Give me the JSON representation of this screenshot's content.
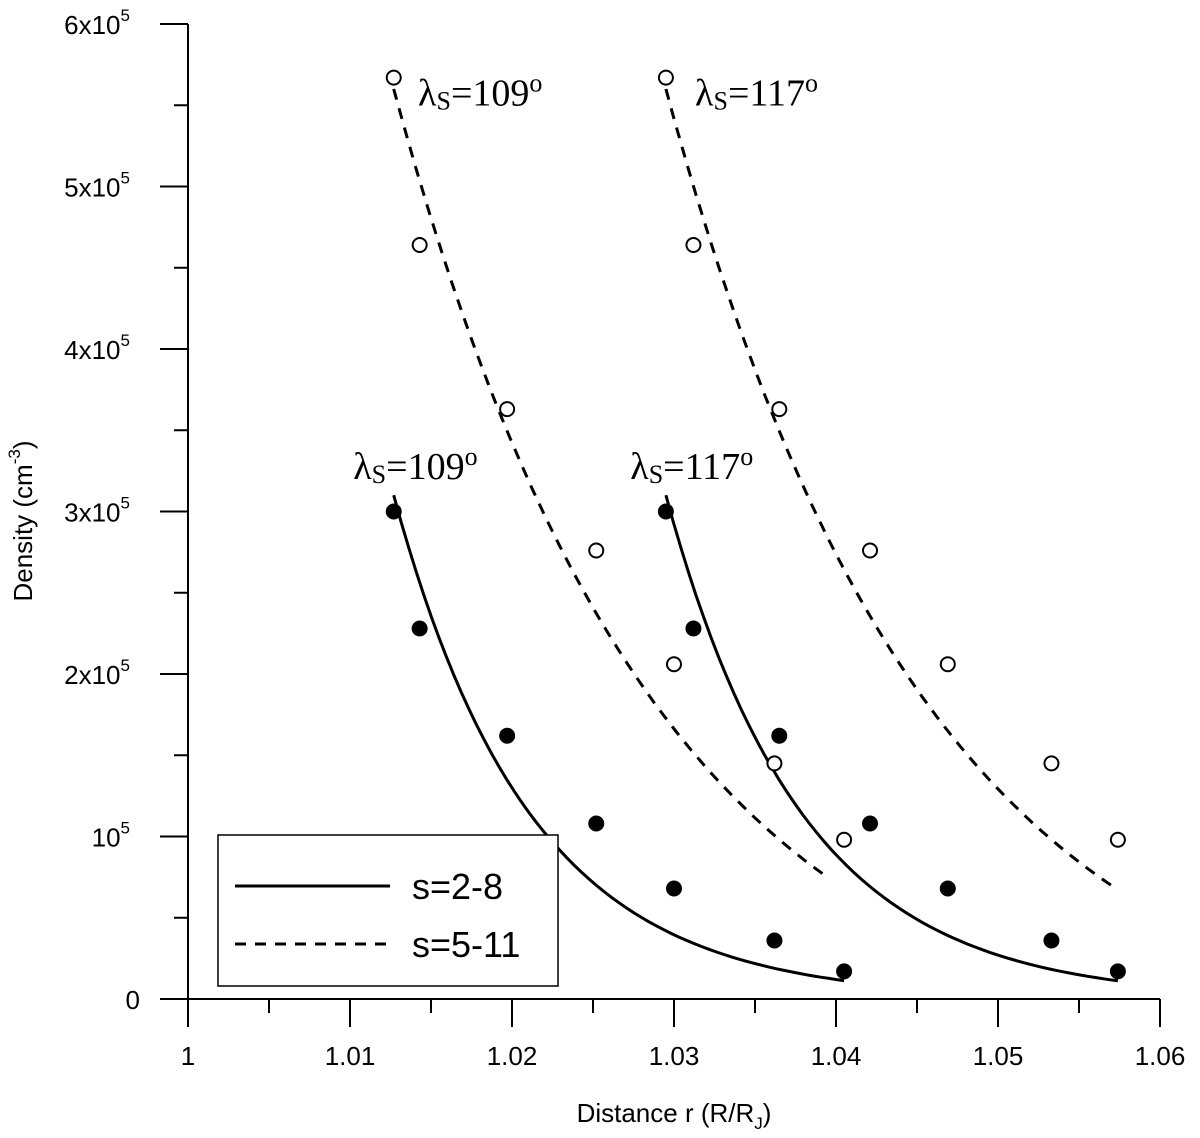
{
  "chart_data": {
    "type": "scatter",
    "xlabel": "Distance r (R/R",
    "xlabel_sub": "J",
    "xlabel_close": ")",
    "ylabel": "Density  (cm",
    "ylabel_sup": "-3",
    "ylabel_close": ")",
    "xlim": [
      1.0,
      1.06
    ],
    "ylim": [
      0,
      600000
    ],
    "x_ticks": [
      1.0,
      1.01,
      1.02,
      1.03,
      1.04,
      1.05,
      1.06
    ],
    "x_tick_labels": [
      "1",
      "1.01",
      "1.02",
      "1.03",
      "1.04",
      "1.05",
      "1.06"
    ],
    "y_ticks": [
      0,
      100000,
      200000,
      300000,
      400000,
      500000,
      600000
    ],
    "y_tick_labels": [
      {
        "base": "0",
        "exp": ""
      },
      {
        "base": "10",
        "exp": "5"
      },
      {
        "base": "2x10",
        "exp": "5"
      },
      {
        "base": "3x10",
        "exp": "5"
      },
      {
        "base": "4x10",
        "exp": "5"
      },
      {
        "base": "5x10",
        "exp": "5"
      },
      {
        "base": "6x10",
        "exp": "5"
      }
    ],
    "grid": false,
    "legend_position": "bottom-left",
    "legend": [
      {
        "label": "s=2-8",
        "style": "solid"
      },
      {
        "label": "s=5-11",
        "style": "dashed"
      }
    ],
    "series": [
      {
        "group": "s=2-8",
        "style": "solid",
        "marker": "filled",
        "points": [
          {
            "x": 1.0127,
            "y": 300000
          },
          {
            "x": 1.0143,
            "y": 228000
          },
          {
            "x": 1.0197,
            "y": 162000
          },
          {
            "x": 1.0252,
            "y": 108000
          },
          {
            "x": 1.03,
            "y": 68000
          },
          {
            "x": 1.0362,
            "y": 36000
          },
          {
            "x": 1.0405,
            "y": 17000
          }
        ],
        "fit": {
          "x_start": 1.0127,
          "x_end": 1.0405,
          "y_start": 310000,
          "y_end": 20000,
          "x_ref": 1.0127,
          "y_ref": 310000,
          "decay": 0.0084
        }
      },
      {
        "group": "s=2-8",
        "style": "solid",
        "marker": "filled",
        "points": [
          {
            "x": 1.0295,
            "y": 300000
          },
          {
            "x": 1.0312,
            "y": 228000
          },
          {
            "x": 1.0365,
            "y": 162000
          },
          {
            "x": 1.0421,
            "y": 108000
          },
          {
            "x": 1.0469,
            "y": 68000
          },
          {
            "x": 1.0533,
            "y": 36000
          },
          {
            "x": 1.0574,
            "y": 17000
          }
        ],
        "fit": {
          "x_start": 1.0295,
          "x_end": 1.0574,
          "x_ref": 1.0295,
          "y_ref": 310000,
          "decay": 0.0084
        }
      },
      {
        "group": "s=5-11",
        "style": "dashed",
        "marker": "open",
        "points": [
          {
            "x": 1.0127,
            "y": 567000
          },
          {
            "x": 1.0143,
            "y": 464000
          },
          {
            "x": 1.0197,
            "y": 363000
          },
          {
            "x": 1.0252,
            "y": 276000
          },
          {
            "x": 1.03,
            "y": 206000
          },
          {
            "x": 1.0362,
            "y": 145000
          },
          {
            "x": 1.0405,
            "y": 98000
          }
        ],
        "fit": {
          "x_start": 1.0127,
          "x_end": 1.0395,
          "x_ref": 1.0127,
          "y_ref": 560000,
          "decay": 0.0162,
          "offset": -40000
        }
      },
      {
        "group": "s=5-11",
        "style": "dashed",
        "marker": "open",
        "points": [
          {
            "x": 1.0295,
            "y": 567000
          },
          {
            "x": 1.0312,
            "y": 464000
          },
          {
            "x": 1.0365,
            "y": 363000
          },
          {
            "x": 1.0421,
            "y": 276000
          },
          {
            "x": 1.0469,
            "y": 206000
          },
          {
            "x": 1.0533,
            "y": 145000
          },
          {
            "x": 1.0574,
            "y": 98000
          }
        ],
        "fit": {
          "x_start": 1.0295,
          "x_end": 1.0574,
          "x_ref": 1.0295,
          "y_ref": 560000,
          "decay": 0.0162,
          "offset": -40000
        }
      }
    ],
    "annotations": [
      {
        "lambda": "λ",
        "sub": "S",
        "eq": "=109",
        "sup": "o",
        "x": 1.0142,
        "y": 550000
      },
      {
        "lambda": "λ",
        "sub": "S",
        "eq": "=117",
        "sup": "o",
        "x": 1.0313,
        "y": 550000
      },
      {
        "lambda": "λ",
        "sub": "S",
        "eq": "=109",
        "sup": "o",
        "x": 1.0102,
        "y": 320000
      },
      {
        "lambda": "λ",
        "sub": "S",
        "eq": "=117",
        "sup": "o",
        "x": 1.0273,
        "y": 320000
      }
    ]
  }
}
